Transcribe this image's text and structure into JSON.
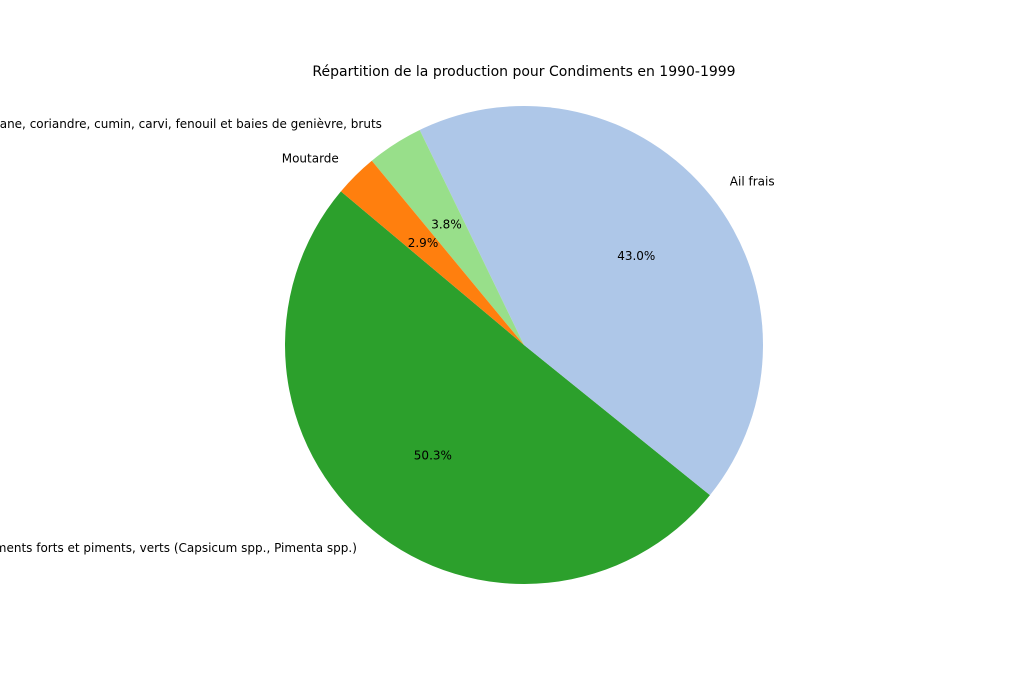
{
  "chart_data": {
    "type": "pie",
    "title": "Répartition de la production pour Condiments en 1990-1999",
    "start_angle_deg": 140,
    "direction": "counterclockwise",
    "slices": [
      {
        "label": "Piments forts et piments, verts (Capsicum spp., Pimenta spp.)",
        "value": 50.3,
        "pct_label": "50.3%",
        "color": "#2ca02c"
      },
      {
        "label": "Ail frais",
        "value": 43.0,
        "pct_label": "43.0%",
        "color": "#aec7e8"
      },
      {
        "label": "Anis, badiane, coriandre, cumin, carvi, fenouil et baies de genièvre, bruts",
        "value": 3.8,
        "pct_label": "3.8%",
        "color": "#98df8a"
      },
      {
        "label": "Moutarde",
        "value": 2.9,
        "pct_label": "2.9%",
        "color": "#ff7f0e"
      }
    ]
  }
}
